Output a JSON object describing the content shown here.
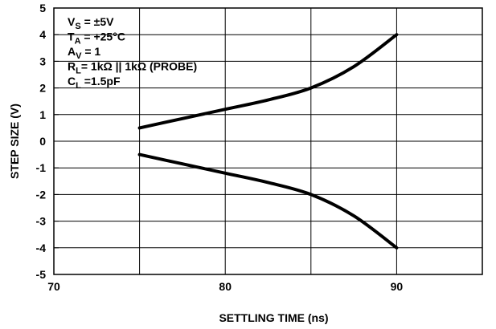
{
  "chart_data": {
    "type": "line",
    "xlabel": "SETTLING TIME (ns)",
    "ylabel": "STEP SIZE (V)",
    "xlim": [
      70,
      95
    ],
    "ylim": [
      -5,
      5
    ],
    "x_ticks": [
      "70",
      "80",
      "90"
    ],
    "y_ticks": [
      "5",
      "4",
      "3",
      "2",
      "1",
      "0",
      "-1",
      "-2",
      "-3",
      "-4",
      "-5"
    ],
    "grid": true,
    "series": [
      {
        "color": "#000000",
        "x": [
          75,
          77.5,
          80,
          82.5,
          85,
          87.5,
          90
        ],
        "y": [
          0.5,
          0.85,
          1.2,
          1.55,
          2.0,
          2.8,
          4.0
        ]
      },
      {
        "color": "#000000",
        "x": [
          75,
          77.5,
          80,
          82.5,
          85,
          87.5,
          90
        ],
        "y": [
          -0.5,
          -0.85,
          -1.2,
          -1.55,
          -2.0,
          -2.8,
          -4.0
        ]
      }
    ],
    "annotations": [
      {
        "main": "V",
        "sub": "S",
        "rest": " = ±5V"
      },
      {
        "main": "T",
        "sub": "A",
        "rest": " = +25°C"
      },
      {
        "main": "A",
        "sub": "V",
        "rest": " = 1"
      },
      {
        "main": "R",
        "sub": "L",
        "rest": "= 1kΩ || 1kΩ (PROBE)"
      },
      {
        "main": "C",
        "sub": "L",
        "rest": " =1.5pF"
      }
    ]
  }
}
